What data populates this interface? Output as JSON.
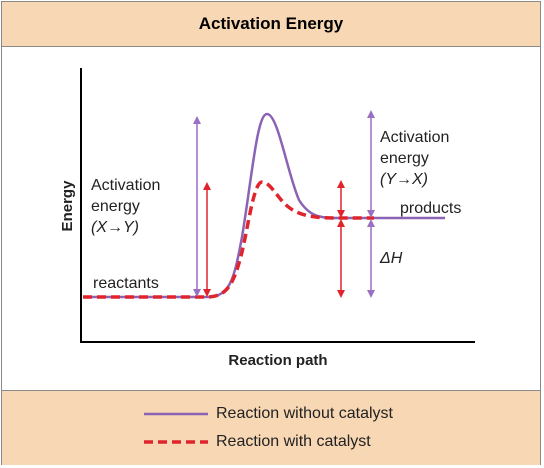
{
  "title": "Activation Energy",
  "axes": {
    "x_label": "Reaction path",
    "y_label": "Energy"
  },
  "labels": {
    "reactants": "reactants",
    "products": "products",
    "activation_xy": [
      "Activation",
      "energy",
      "(X→Y)"
    ],
    "activation_yx": [
      "Activation",
      "energy",
      "(Y→X)"
    ],
    "delta_h": "ΔH"
  },
  "legend": {
    "without_catalyst": "Reaction without catalyst",
    "with_catalyst": "Reaction with catalyst"
  },
  "colors": {
    "panel": "#f8d7b4",
    "uncatalyzed": "#8b63b5",
    "catalyzed": "#e0242b",
    "purple_arrow": "#9b6fc2",
    "red_arrow": "#e0242b"
  }
}
